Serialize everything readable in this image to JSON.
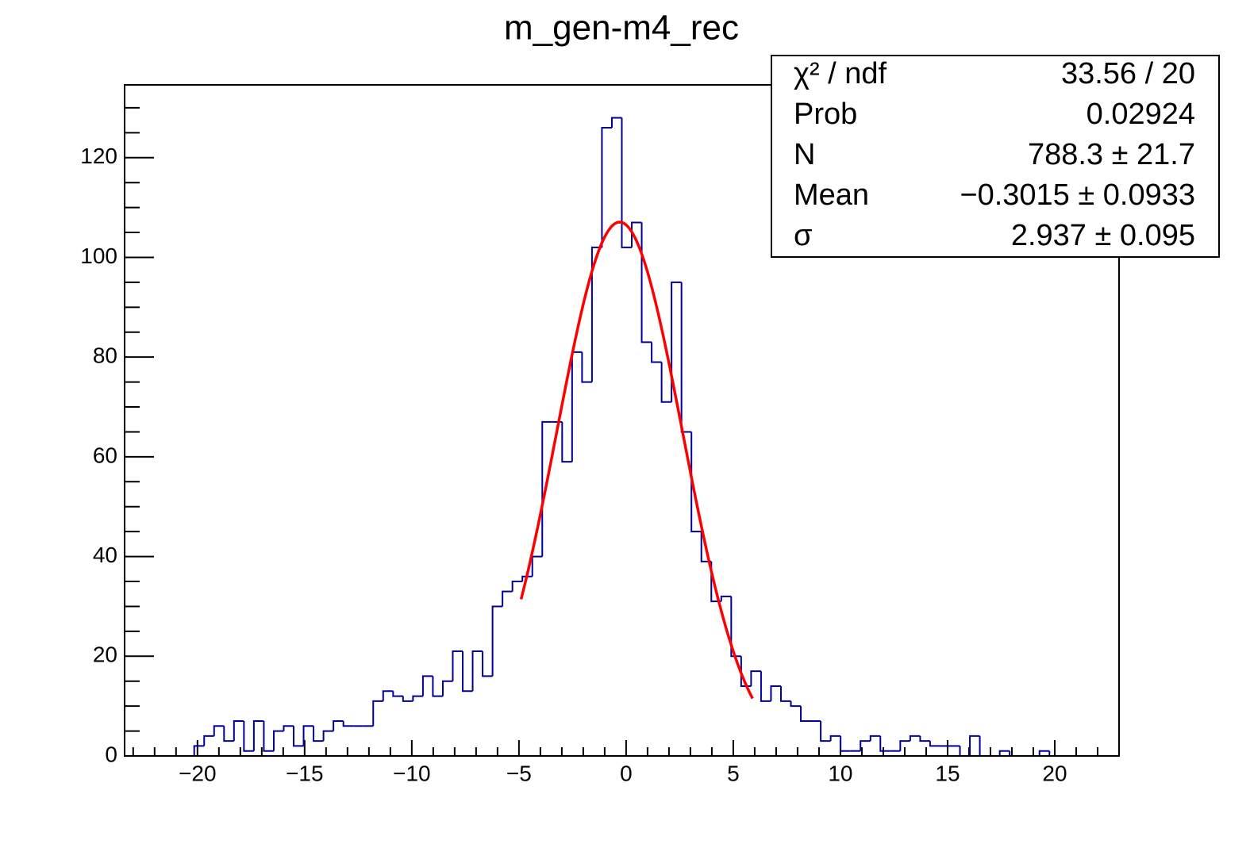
{
  "chart_data": {
    "type": "histogram",
    "title": "m_gen-m4_rec",
    "color": "#000099",
    "bins": [
      -23.4,
      -22.936,
      -22.472,
      -22.008,
      -21.544,
      -21.08,
      -20.616,
      -20.152,
      -19.688,
      -19.224,
      -18.76,
      -18.296,
      -17.832,
      -17.368,
      -16.904,
      -16.44,
      -15.976,
      -15.512,
      -15.048,
      -14.584,
      -14.12,
      -13.656,
      -13.192,
      -12.728,
      -12.264,
      -11.8,
      -11.336,
      -10.872,
      -10.408,
      -9.944,
      -9.48,
      -9.016,
      -8.552,
      -8.088,
      -7.624,
      -7.16,
      -6.696,
      -6.232,
      -5.768,
      -5.304,
      -4.84,
      -4.376,
      -3.912,
      -3.448,
      -2.984,
      -2.52,
      -2.056,
      -1.592,
      -1.128,
      -0.664,
      -0.2,
      0.264,
      0.728,
      1.192,
      1.656,
      2.12,
      2.584,
      3.048,
      3.512,
      3.976,
      4.44,
      4.904,
      5.368,
      5.832,
      6.296,
      6.76,
      7.224,
      7.688,
      8.152,
      8.616,
      9.08,
      9.544,
      10.008,
      10.472,
      10.936,
      11.4,
      11.864,
      12.328,
      12.792,
      13.256,
      13.72,
      14.184,
      14.648,
      15.112,
      15.576,
      16.04,
      16.504,
      16.968,
      17.432,
      17.896,
      18.36,
      18.824,
      19.288,
      19.752,
      20.216,
      20.68,
      21.144,
      21.608,
      22.072,
      22.536,
      23.0
    ],
    "values": [
      0,
      0,
      0,
      0,
      0,
      0,
      0,
      2,
      4,
      6,
      3,
      7,
      1,
      7,
      1,
      5,
      6,
      2,
      6,
      3,
      5,
      7,
      6,
      6,
      6,
      11,
      13,
      12,
      11,
      12,
      16,
      12,
      15,
      21,
      13,
      21,
      16,
      30,
      33,
      35,
      36,
      40,
      67,
      67,
      59,
      81,
      75,
      102,
      126,
      128,
      102,
      107,
      83,
      79,
      71,
      95,
      65,
      45,
      39,
      31,
      32,
      20,
      14,
      17,
      11,
      14,
      11,
      10,
      7,
      7,
      3,
      4,
      1,
      1,
      3,
      4,
      1,
      1,
      3,
      4,
      3,
      2,
      2,
      2,
      0,
      4,
      0,
      0,
      1,
      0,
      0,
      0,
      1,
      0,
      0,
      0,
      0,
      0,
      0,
      0
    ],
    "xlim": [
      -23.4,
      23.0
    ],
    "ylim": [
      0,
      134.6
    ],
    "xticks": [
      {
        "value": -20,
        "label": "−20"
      },
      {
        "value": -15,
        "label": "−15"
      },
      {
        "value": -10,
        "label": "−10"
      },
      {
        "value": -5,
        "label": "−5"
      },
      0,
      5,
      10,
      15,
      20
    ],
    "xminorticks": [
      -23,
      -22,
      -21,
      -19,
      -18,
      -17,
      -16,
      -14,
      -13,
      -12,
      -11,
      -9,
      -8,
      -7,
      -6,
      -4,
      -3,
      -2,
      -1,
      1,
      2,
      3,
      4,
      6,
      7,
      8,
      9,
      11,
      12,
      13,
      14,
      16,
      17,
      18,
      19,
      21,
      22,
      23
    ],
    "yticks": [
      0,
      20,
      40,
      60,
      80,
      100,
      120
    ],
    "yminorticks": [
      5,
      10,
      15,
      25,
      30,
      35,
      45,
      50,
      55,
      65,
      70,
      75,
      85,
      90,
      95,
      105,
      110,
      115,
      125,
      130
    ],
    "fit_color": "#ff0000",
    "fit_range": [
      -4.9,
      5.9
    ],
    "stats": [
      {
        "label": "χ² / ndf",
        "value_label": "33.56 / 20"
      },
      {
        "label": "Prob",
        "value": 0.02924
      },
      {
        "label": "N",
        "value": 788.3,
        "error": 21.7,
        "value_label": "788.3 ± 21.7"
      },
      {
        "label": "Mean",
        "value": -0.3015,
        "error": 0.0933,
        "value_label": "−0.3015 ± 0.0933"
      },
      {
        "label": "σ",
        "value": 2.937,
        "error": 0.095,
        "value_label": "2.937 ± 0.095"
      }
    ]
  }
}
